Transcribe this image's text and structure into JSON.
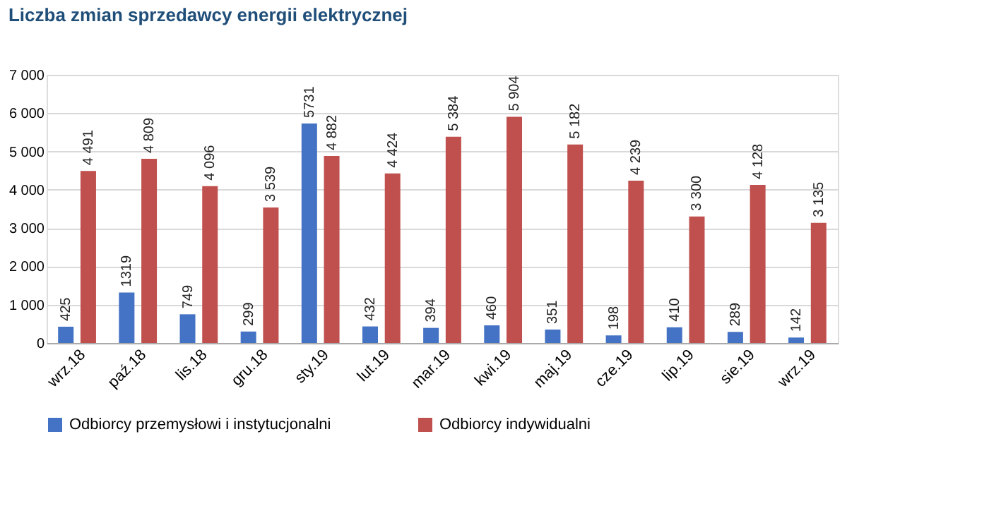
{
  "chart_data": {
    "type": "bar",
    "title": "Liczba zmian sprzedawcy energii elektrycznej",
    "categories": [
      "wrz.18",
      "paź.18",
      "lis.18",
      "gru.18",
      "sty.19",
      "lut.19",
      "mar.19",
      "kwi.19",
      "maj.19",
      "cze.19",
      "lip.19",
      "sie.19",
      "wrz.19"
    ],
    "series": [
      {
        "name": "Odbiorcy przemysłowi i instytucjonalni",
        "color": "#4472c4",
        "values": [
          425,
          1319,
          749,
          299,
          5731,
          432,
          394,
          460,
          351,
          198,
          410,
          289,
          142
        ],
        "value_labels": [
          "425",
          "1319",
          "749",
          "299",
          "5731",
          "432",
          "394",
          "460",
          "351",
          "198",
          "410",
          "289",
          "142"
        ]
      },
      {
        "name": "Odbiorcy indywidualni",
        "color": "#c0504d",
        "values": [
          4491,
          4809,
          4096,
          3539,
          4882,
          4424,
          5384,
          5904,
          5182,
          4239,
          3300,
          4128,
          3135
        ],
        "value_labels": [
          "4 491",
          "4 809",
          "4 096",
          "3 539",
          "4 882",
          "4 424",
          "5 384",
          "5 904",
          "5 182",
          "4 239",
          "3 300",
          "4 128",
          "3 135"
        ]
      }
    ],
    "ylim": [
      0,
      7000
    ],
    "yticks": [
      0,
      {
        "value": 1000,
        "label": "1 000"
      },
      {
        "value": 2000,
        "label": "2 000"
      },
      {
        "value": 3000,
        "label": "3 000"
      },
      {
        "value": 4000,
        "label": "4 000"
      },
      {
        "value": 5000,
        "label": "5 000"
      },
      {
        "value": 6000,
        "label": "6 000"
      },
      {
        "value": 7000,
        "label": "7 000"
      }
    ],
    "grid": "y",
    "legend": "bottom"
  }
}
